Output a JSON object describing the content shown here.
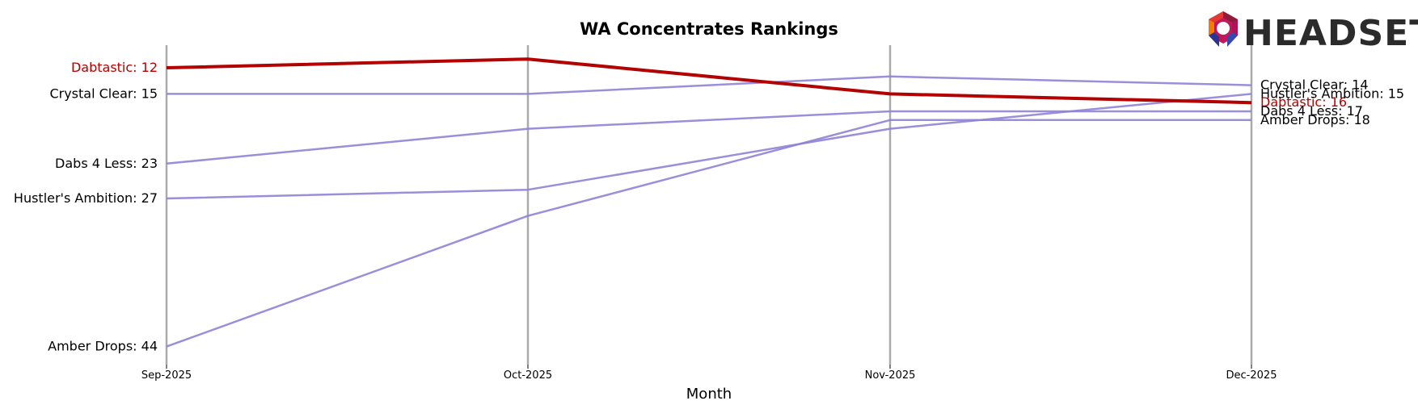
{
  "brand": {
    "logo_text": "HEADSET"
  },
  "colors": {
    "highlight": "#b30000",
    "other": "#8f83d6",
    "vline": "#aaaaaa"
  },
  "chart_data": {
    "type": "line",
    "title": "WA Concentrates Rankings",
    "xlabel": "Month",
    "ylabel": "",
    "x": [
      "Sep-2025",
      "Oct-2025",
      "Nov-2025",
      "Dec-2025"
    ],
    "ylim": [
      48,
      12
    ],
    "y_inverted": true,
    "grid": false,
    "highlight": "Dabtastic",
    "series": [
      {
        "name": "Dabtastic",
        "values": [
          12,
          11,
          15,
          16
        ],
        "start_label": "Dabtastic: 12",
        "end_label": "Dabtastic: 16"
      },
      {
        "name": "Crystal Clear",
        "values": [
          15,
          15,
          13,
          14
        ],
        "start_label": "Crystal Clear: 15",
        "end_label": "Crystal Clear: 14"
      },
      {
        "name": "Dabs 4 Less",
        "values": [
          23,
          19,
          17,
          17
        ],
        "start_label": "Dabs 4 Less: 23",
        "end_label": "Dabs 4 Less: 17"
      },
      {
        "name": "Hustler's Ambition",
        "values": [
          27,
          26,
          19,
          15
        ],
        "start_label": "Hustler's Ambition: 27",
        "end_label": "Hustler's Ambition: 15"
      },
      {
        "name": "Amber Drops",
        "values": [
          44,
          29,
          18,
          18
        ],
        "start_label": "Amber Drops: 44",
        "end_label": "Amber Drops: 18"
      }
    ]
  }
}
